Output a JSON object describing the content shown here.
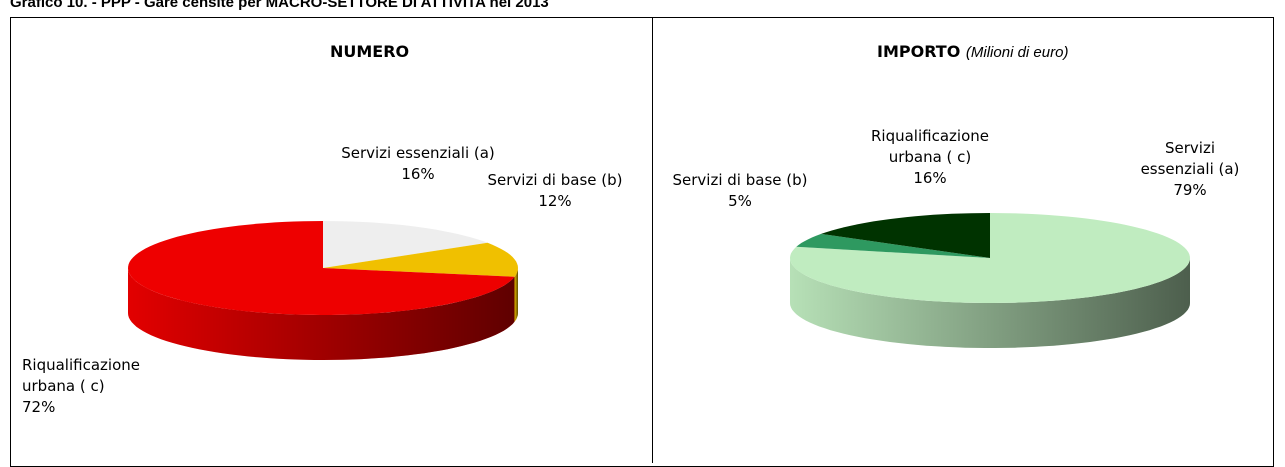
{
  "title": "Grafico 10. - PPP - Gare censite per MACRO-SETTORE DI ATTIVITA nel 2013",
  "chart_data": [
    {
      "type": "pie",
      "title": "NUMERO",
      "categories": [
        "Servizi essenziali (a)",
        "Servizi di base (b)",
        "Riqualificazione urbana ( c)"
      ],
      "values": [
        16,
        12,
        72
      ],
      "value_labels": [
        "16%",
        "12%",
        "72%"
      ],
      "colors": [
        "#eeeeee",
        "#f0c000",
        "#ee0000"
      ]
    },
    {
      "type": "pie",
      "title": "IMPORTO",
      "subtitle": "(Milioni di euro)",
      "categories": [
        "Servizi essenziali (a)",
        "Servizi di base (b)",
        "Riqualificazione urbana ( c)"
      ],
      "values": [
        79,
        5,
        16
      ],
      "value_labels": [
        "79%",
        "5%",
        "16%"
      ],
      "colors": [
        "#c0ecc0",
        "#2e9960",
        "#003300"
      ]
    }
  ]
}
